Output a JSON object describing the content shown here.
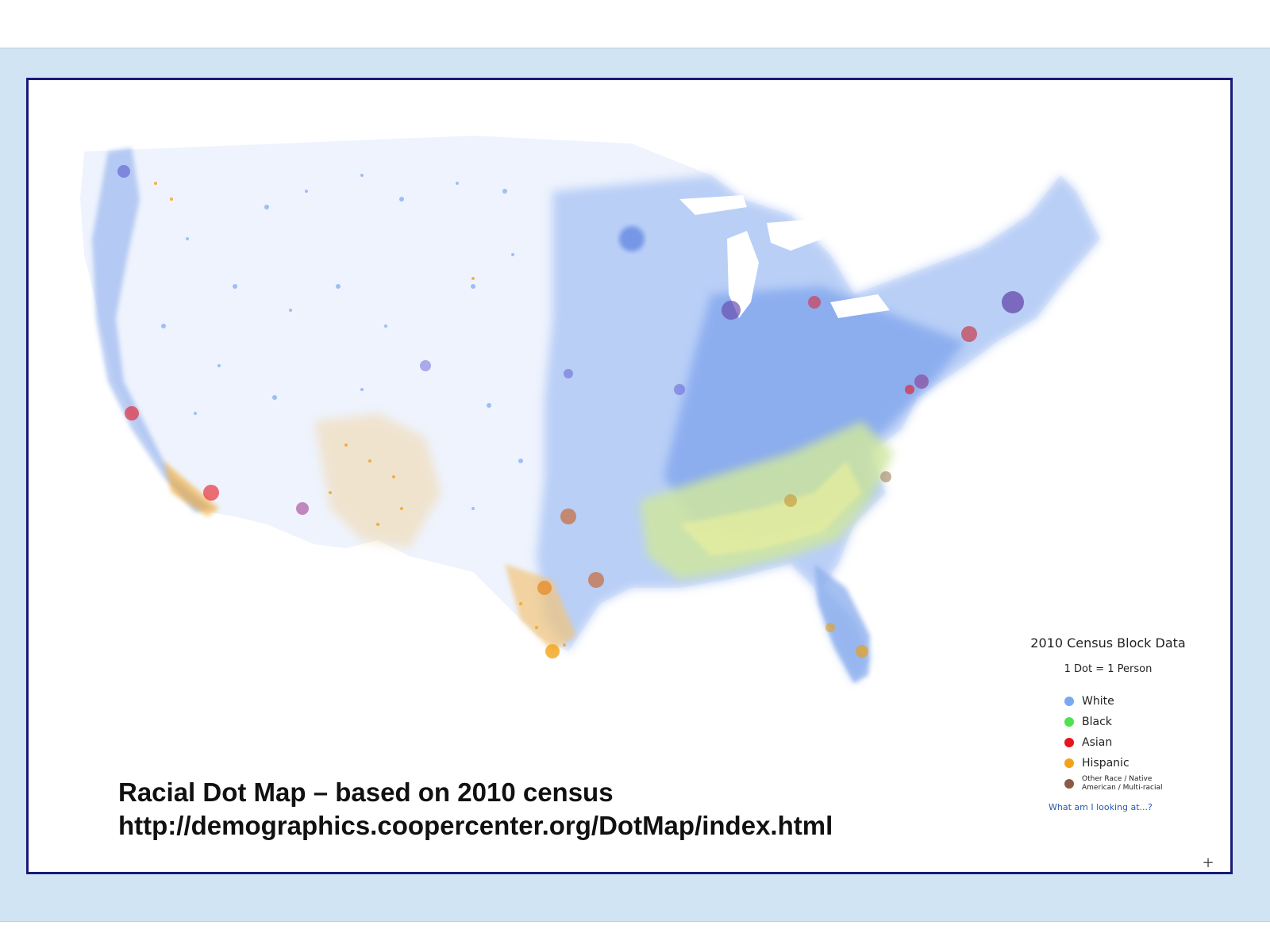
{
  "caption": {
    "line1": "Racial Dot Map – based on 2010 census",
    "line2": "http://demographics.coopercenter.org/DotMap/index.html"
  },
  "legend": {
    "title": "2010 Census Block Data",
    "subtitle": "1 Dot = 1 Person",
    "items": [
      {
        "label": "White",
        "color": "#7aa8f0"
      },
      {
        "label": "Black",
        "color": "#4fe24f"
      },
      {
        "label": "Asian",
        "color": "#e8141c"
      },
      {
        "label": "Hispanic",
        "color": "#f3a21c"
      },
      {
        "label": "Other Race / Native American / Multi-racial",
        "color": "#8a5a44"
      }
    ],
    "link": "What am I looking at...?"
  },
  "zoom": {
    "label": "+"
  },
  "colors": {
    "frame_border": "#1a1a7a",
    "slide_band": "#d0e4f3",
    "white_dots": "#7aa8f0",
    "black_dots": "#4fe24f",
    "asian_dots": "#e8141c",
    "hispanic_dots": "#f3a21c",
    "other_dots": "#8a5a44"
  }
}
